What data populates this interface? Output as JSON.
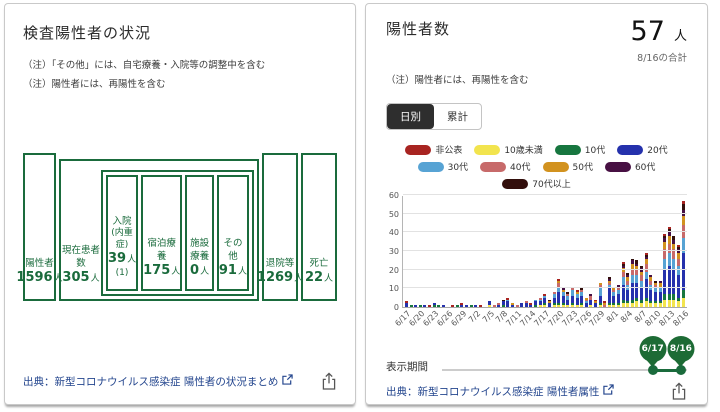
{
  "status": {
    "title": "検査陽性者の状況",
    "notes": [
      "（注）「その他」には、自宅療養・入院等の調整中を含む",
      "（注）陽性者には、再陽性を含む"
    ],
    "boxes": {
      "positive": {
        "label": "陽性者",
        "value": "1596",
        "unit": "人"
      },
      "current": {
        "label": "現在患者数",
        "value": "305",
        "unit": "人"
      },
      "hospitalized": {
        "label": "入院",
        "sublabel": "(内重症)",
        "value": "39",
        "unit": "人",
        "subvalue": "(1)"
      },
      "hotel": {
        "label": "宿泊療養",
        "value": "175",
        "unit": "人"
      },
      "facility": {
        "label": "施設療養",
        "value": "0",
        "unit": "人"
      },
      "other": {
        "label": "その他",
        "value": "91",
        "unit": "人"
      },
      "discharged": {
        "label": "退院等",
        "value": "1269",
        "unit": "人"
      },
      "died": {
        "label": "死亡",
        "value": "22",
        "unit": "人"
      }
    },
    "source_label": "出典：新型コロナウイルス感染症 陽性者の状況まとめ"
  },
  "positives": {
    "title": "陽性者数",
    "total_value": "57",
    "total_unit": "人",
    "total_caption": "8/16の合計",
    "note": "（注）陽性者には、再陽性を含む",
    "tabs": [
      {
        "label": "日別",
        "selected": true
      },
      {
        "label": "累計",
        "selected": false
      }
    ],
    "period_label": "表示期間",
    "period_start": "6/17",
    "period_end": "8/16",
    "source_label": "出典：新型コロナウイルス感染症 陽性者属性"
  },
  "colors": {
    "accent_green": "#1a6b3c",
    "link_blue": "#24468e",
    "tab_selected_bg": "#2e2e2e"
  },
  "chart_data": {
    "type": "bar",
    "stacked": true,
    "title": "陽性者数（日別）",
    "xlabel": "",
    "ylabel": "",
    "ylim": [
      0,
      60
    ],
    "ytick_step": 10,
    "grid": true,
    "legend_position": "top",
    "tick_every": 3,
    "categories": [
      "6/17",
      "6/18",
      "6/19",
      "6/20",
      "6/21",
      "6/22",
      "6/23",
      "6/24",
      "6/25",
      "6/26",
      "6/27",
      "6/28",
      "6/29",
      "6/30",
      "7/1",
      "7/2",
      "7/3",
      "7/4",
      "7/5",
      "7/6",
      "7/7",
      "7/8",
      "7/9",
      "7/10",
      "7/11",
      "7/12",
      "7/13",
      "7/14",
      "7/15",
      "7/16",
      "7/17",
      "7/18",
      "7/19",
      "7/20",
      "7/21",
      "7/22",
      "7/23",
      "7/24",
      "7/25",
      "7/26",
      "7/27",
      "7/28",
      "7/29",
      "7/30",
      "7/31",
      "8/1",
      "8/2",
      "8/3",
      "8/4",
      "8/5",
      "8/6",
      "8/7",
      "8/8",
      "8/9",
      "8/10",
      "8/11",
      "8/12",
      "8/13",
      "8/14",
      "8/15",
      "8/16"
    ],
    "stack_order": [
      1,
      2,
      3,
      4,
      5,
      6,
      7,
      8,
      0
    ],
    "series": [
      {
        "name": "非公表",
        "color": "#a82421",
        "values": [
          1,
          0,
          0,
          0,
          0,
          1,
          0,
          0,
          0,
          0,
          1,
          0,
          1,
          0,
          0,
          0,
          1,
          0,
          0,
          0,
          0,
          0,
          1,
          0,
          0,
          0,
          0,
          1,
          0,
          0,
          1,
          0,
          0,
          1,
          0,
          0,
          0,
          1,
          0,
          0,
          0,
          1,
          0,
          1,
          0,
          1,
          0,
          1,
          0,
          0,
          0,
          0,
          1,
          0,
          0,
          0,
          1,
          1,
          0,
          1,
          2
        ]
      },
      {
        "name": "10歳未満",
        "color": "#f2e44e",
        "values": [
          0,
          0,
          0,
          0,
          0,
          0,
          0,
          0,
          0,
          0,
          0,
          0,
          0,
          0,
          0,
          0,
          0,
          0,
          1,
          0,
          0,
          0,
          0,
          0,
          0,
          0,
          0,
          0,
          0,
          1,
          1,
          0,
          1,
          1,
          1,
          1,
          1,
          1,
          1,
          0,
          1,
          0,
          1,
          0,
          1,
          1,
          1,
          2,
          2,
          2,
          3,
          2,
          3,
          2,
          2,
          2,
          4,
          4,
          4,
          3,
          5
        ]
      },
      {
        "name": "10代",
        "color": "#17763f",
        "values": [
          0,
          1,
          0,
          1,
          0,
          0,
          1,
          1,
          0,
          0,
          0,
          1,
          0,
          0,
          1,
          0,
          0,
          0,
          0,
          0,
          0,
          1,
          0,
          0,
          0,
          0,
          0,
          0,
          1,
          0,
          1,
          0,
          1,
          1,
          1,
          0,
          1,
          0,
          1,
          0,
          0,
          0,
          1,
          0,
          1,
          1,
          1,
          2,
          1,
          2,
          2,
          2,
          2,
          1,
          1,
          1,
          3,
          3,
          3,
          2,
          4
        ]
      },
      {
        "name": "20代",
        "color": "#2531ac",
        "values": [
          2,
          0,
          1,
          0,
          1,
          0,
          1,
          0,
          1,
          0,
          0,
          0,
          1,
          1,
          0,
          1,
          0,
          0,
          2,
          0,
          1,
          2,
          3,
          1,
          0,
          2,
          2,
          1,
          2,
          2,
          3,
          2,
          3,
          6,
          4,
          3,
          4,
          4,
          4,
          2,
          3,
          2,
          4,
          0,
          8,
          4,
          5,
          8,
          6,
          9,
          8,
          7,
          10,
          6,
          5,
          5,
          13,
          15,
          13,
          12,
          20
        ]
      },
      {
        "name": "30代",
        "color": "#57a3d4",
        "values": [
          0,
          0,
          0,
          0,
          0,
          0,
          0,
          0,
          0,
          0,
          0,
          0,
          0,
          0,
          0,
          0,
          0,
          0,
          0,
          0,
          0,
          0,
          1,
          0,
          0,
          0,
          0,
          0,
          1,
          1,
          1,
          0,
          2,
          3,
          2,
          2,
          3,
          2,
          2,
          1,
          0,
          0,
          5,
          0,
          2,
          2,
          2,
          4,
          3,
          4,
          4,
          3,
          4,
          3,
          2,
          2,
          6,
          7,
          6,
          5,
          8
        ]
      },
      {
        "name": "40代",
        "color": "#c76a6a",
        "values": [
          0,
          0,
          0,
          0,
          0,
          0,
          0,
          0,
          0,
          0,
          0,
          0,
          0,
          0,
          0,
          0,
          0,
          0,
          0,
          1,
          1,
          0,
          0,
          0,
          1,
          0,
          1,
          0,
          0,
          1,
          0,
          0,
          1,
          2,
          0,
          1,
          1,
          0,
          1,
          1,
          2,
          0,
          1,
          1,
          1,
          1,
          1,
          3,
          2,
          3,
          3,
          3,
          4,
          2,
          2,
          1,
          5,
          5,
          5,
          4,
          7
        ]
      },
      {
        "name": "50代",
        "color": "#d2921f",
        "values": [
          0,
          0,
          0,
          0,
          0,
          0,
          0,
          0,
          0,
          0,
          0,
          0,
          0,
          0,
          0,
          0,
          0,
          0,
          0,
          0,
          0,
          0,
          0,
          1,
          0,
          0,
          0,
          0,
          0,
          0,
          0,
          1,
          0,
          1,
          1,
          0,
          1,
          1,
          0,
          1,
          0,
          1,
          1,
          1,
          1,
          1,
          1,
          2,
          2,
          3,
          2,
          2,
          3,
          2,
          1,
          2,
          4,
          4,
          3,
          3,
          5
        ]
      },
      {
        "name": "60代",
        "color": "#471043",
        "values": [
          0,
          0,
          0,
          0,
          0,
          0,
          0,
          0,
          0,
          0,
          0,
          0,
          0,
          0,
          0,
          0,
          0,
          0,
          0,
          0,
          0,
          0,
          0,
          0,
          0,
          0,
          0,
          0,
          0,
          0,
          0,
          0,
          0,
          0,
          1,
          0,
          0,
          0,
          0,
          0,
          1,
          0,
          0,
          0,
          1,
          0,
          1,
          1,
          1,
          2,
          1,
          2,
          1,
          1,
          0,
          1,
          2,
          2,
          2,
          2,
          3
        ]
      },
      {
        "name": "70代以上",
        "color": "#330f0c",
        "values": [
          0,
          0,
          0,
          0,
          0,
          0,
          0,
          0,
          0,
          0,
          0,
          0,
          0,
          0,
          0,
          0,
          0,
          0,
          0,
          0,
          0,
          1,
          0,
          0,
          0,
          0,
          0,
          0,
          0,
          0,
          0,
          1,
          0,
          0,
          0,
          1,
          0,
          0,
          1,
          0,
          0,
          0,
          0,
          0,
          1,
          0,
          0,
          1,
          1,
          1,
          2,
          1,
          1,
          0,
          1,
          0,
          1,
          2,
          2,
          1,
          3
        ]
      }
    ]
  }
}
